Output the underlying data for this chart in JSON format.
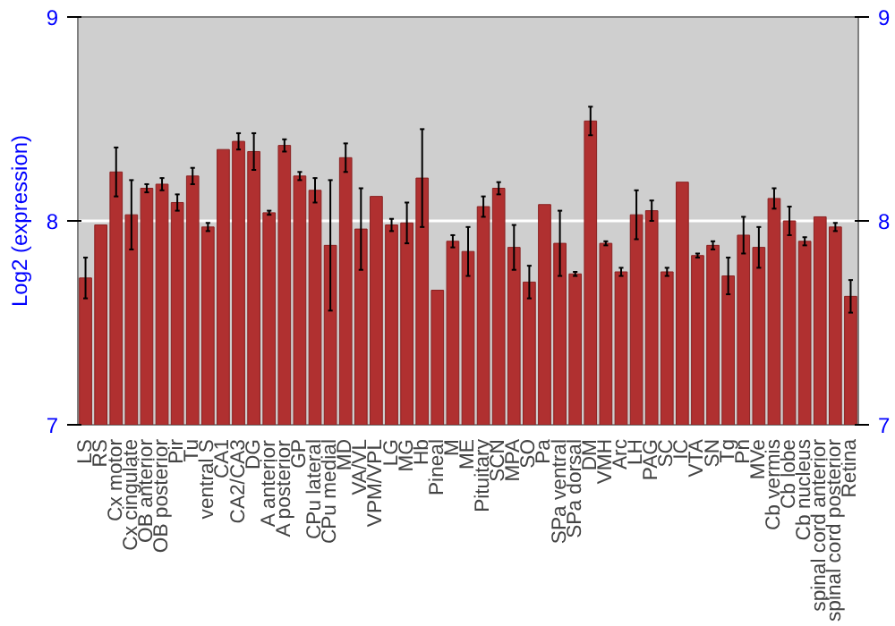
{
  "chart_data": {
    "type": "bar",
    "ylabel": "Log2 (expression)",
    "categories": [
      "LS",
      "RS",
      "Cx motor",
      "Cx cingulate",
      "OB anterior",
      "OB posterior",
      "Pir",
      "Tu",
      "ventral S",
      "CA1",
      "CA2/CA3",
      "DG",
      "A anterior",
      "A posterior",
      "GP",
      "CPu lateral",
      "CPu medial",
      "MD",
      "VA/VL",
      "VPM/VPL",
      "LG",
      "MG",
      "Hb",
      "Pineal",
      "M",
      "ME",
      "Pituitary",
      "SCN",
      "MPA",
      "SO",
      "Pa",
      "SPa ventral",
      "SPa dorsal",
      "DM",
      "VMH",
      "Arc",
      "LH",
      "PAG",
      "SC",
      "IC",
      "VTA",
      "SN",
      "Tg",
      "Pn",
      "MVe",
      "Cb vermis",
      "Cb lobe",
      "Cb nucleus",
      "spinal cord anterior",
      "spinal cord posterior",
      "Retina"
    ],
    "values": [
      7.72,
      7.98,
      8.24,
      8.03,
      8.16,
      8.18,
      8.09,
      8.22,
      7.97,
      8.35,
      8.39,
      8.34,
      8.04,
      8.37,
      8.22,
      8.15,
      7.88,
      8.31,
      7.96,
      8.12,
      7.98,
      7.99,
      8.21,
      7.66,
      7.9,
      7.85,
      8.07,
      8.16,
      7.87,
      7.7,
      8.08,
      7.89,
      7.74,
      8.49,
      7.89,
      7.75,
      8.03,
      8.05,
      7.75,
      8.19,
      7.83,
      7.88,
      7.73,
      7.93,
      7.87,
      8.11,
      8.0,
      7.9,
      8.02,
      7.97,
      7.63
    ],
    "errors": [
      0.1,
      null,
      0.12,
      0.17,
      0.02,
      0.03,
      0.04,
      0.04,
      0.02,
      null,
      0.04,
      0.09,
      0.01,
      0.03,
      0.02,
      0.06,
      0.32,
      0.07,
      0.2,
      null,
      0.03,
      0.1,
      0.24,
      null,
      0.03,
      0.12,
      0.05,
      0.03,
      0.11,
      0.08,
      null,
      0.16,
      0.01,
      0.07,
      0.01,
      0.02,
      0.12,
      0.05,
      0.02,
      null,
      0.01,
      0.02,
      0.09,
      0.09,
      0.1,
      0.05,
      0.07,
      0.02,
      null,
      0.02,
      0.08
    ],
    "color": "#b03030",
    "ylim": [
      7,
      9
    ],
    "yticks": [
      7,
      8,
      9
    ],
    "y2lim": [
      7,
      9
    ],
    "y2ticks": [
      7,
      8,
      9
    ],
    "grid": "y"
  }
}
